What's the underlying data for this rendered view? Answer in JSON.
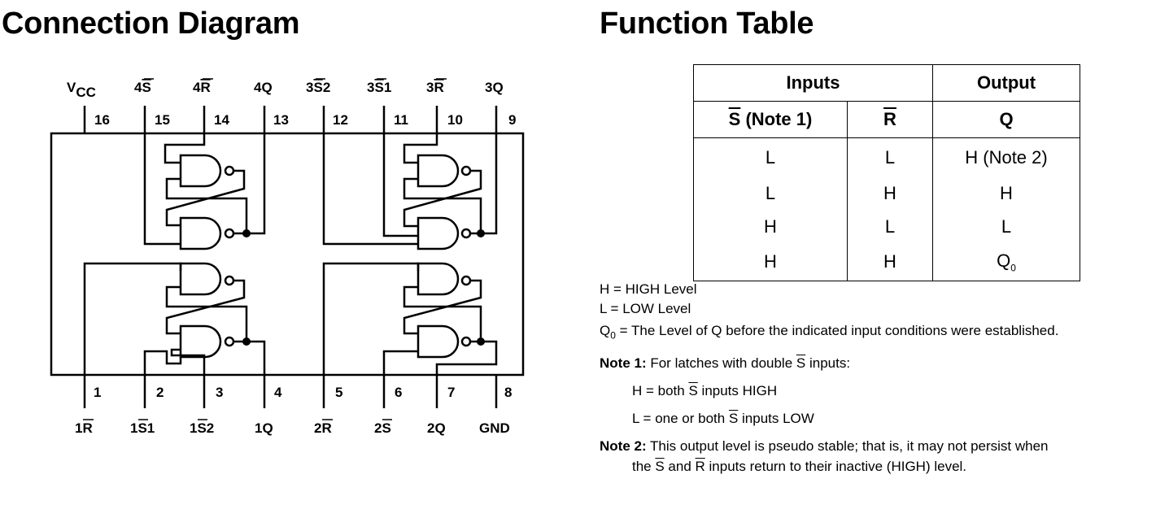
{
  "connection_diagram": {
    "title": "Connection Diagram",
    "top_pin_names": [
      "VCC",
      "4S",
      "4R",
      "4Q",
      "3S2",
      "3S1",
      "3R",
      "3Q"
    ],
    "top_pin_numbers": [
      "16",
      "15",
      "14",
      "13",
      "12",
      "11",
      "10",
      "9"
    ],
    "bottom_pin_numbers": [
      "1",
      "2",
      "3",
      "4",
      "5",
      "6",
      "7",
      "8"
    ],
    "bottom_pin_names": [
      "1R",
      "1S1",
      "1S2",
      "1Q",
      "2R",
      "2S",
      "2Q",
      "GND"
    ]
  },
  "function_table": {
    "title": "Function Table",
    "group_headers": {
      "inputs": "Inputs",
      "output": "Output"
    },
    "col_headers": {
      "s": "S",
      "s_note": " (Note 1)",
      "r": "R",
      "q": "Q"
    },
    "rows": [
      {
        "s": "L",
        "r": "L",
        "q": "H (Note 2)"
      },
      {
        "s": "L",
        "r": "H",
        "q": "H"
      },
      {
        "s": "H",
        "r": "L",
        "q": "L"
      },
      {
        "s": "H",
        "r": "H",
        "q": "Q",
        "q_sub": "0"
      }
    ]
  },
  "legend": {
    "h": "H = HIGH Level",
    "l": "L = LOW Level",
    "q0_symbol": "Q",
    "q0_sub": "0",
    "q0_text": " = The Level of Q before the indicated input conditions were established."
  },
  "notes": {
    "note1_label": "Note 1:",
    "note1_text_a": " For latches with double ",
    "note1_s": "S",
    "note1_text_b": " inputs:",
    "note1_h_a": "H = both ",
    "note1_h_s": "S",
    "note1_h_b": " inputs HIGH",
    "note1_l_a": "L = one or both ",
    "note1_l_s": "S",
    "note1_l_b": " inputs LOW",
    "note2_label": "Note 2:",
    "note2_text": " This output level is pseudo stable; that is, it may not persist when",
    "note2_line2_a": "the ",
    "note2_line2_s": "S",
    "note2_line2_and": " and ",
    "note2_line2_r": "R",
    "note2_line2_b": " inputs return to their inactive (HIGH) level."
  }
}
